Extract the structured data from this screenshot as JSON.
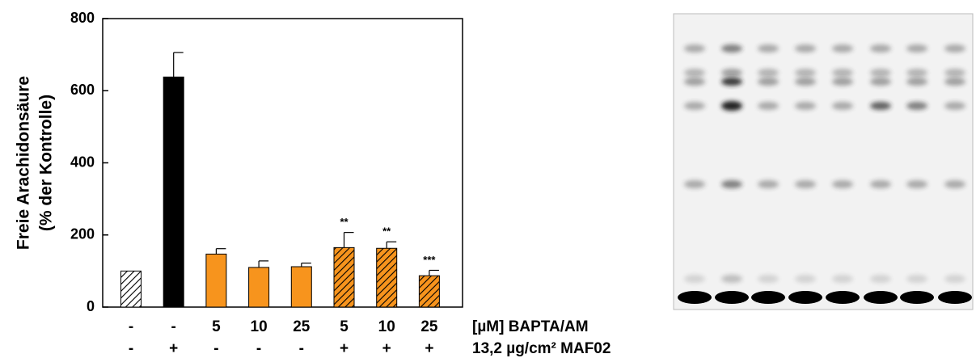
{
  "chart_data": {
    "type": "bar",
    "ylabel": [
      "Freie Arachidonsäure",
      "(% der Kontrolle)"
    ],
    "values": [
      100,
      638,
      147,
      110,
      112,
      165,
      163,
      87
    ],
    "errors": [
      null,
      68,
      15,
      18,
      10,
      42,
      18,
      15
    ],
    "colors": [
      "#ffffff",
      "#000000",
      "#f7941d",
      "#f7941d",
      "#f7941d",
      "#f7941d",
      "#f7941d",
      "#f7941d"
    ],
    "hatched": [
      true,
      false,
      false,
      false,
      false,
      true,
      true,
      true
    ],
    "significance": [
      null,
      null,
      null,
      null,
      null,
      "**",
      "**",
      "***"
    ],
    "rows": [
      {
        "label": "[µM] BAPTA/AM",
        "values": [
          "-",
          "-",
          "5",
          "10",
          "25",
          "5",
          "10",
          "25"
        ]
      },
      {
        "label": "13,2 µg/cm² MAF02",
        "values": [
          "-",
          "+",
          "-",
          "-",
          "-",
          "+",
          "+",
          "+"
        ]
      }
    ],
    "ylim": [
      0,
      800
    ],
    "yticks": [
      0,
      200,
      400,
      600,
      800
    ]
  }
}
